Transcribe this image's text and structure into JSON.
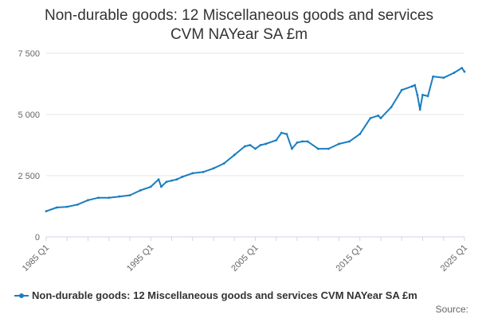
{
  "chart_data": {
    "type": "line",
    "title_line1": "Non-durable goods: 12 Miscellaneous goods and services",
    "title_line2": "CVM NAYear SA £m",
    "xlabel": "",
    "ylabel": "",
    "ylim": [
      0,
      7500
    ],
    "yticks": [
      0,
      2500,
      5000,
      7500
    ],
    "ytick_labels": [
      "0",
      "2 500",
      "5 000",
      "7 500"
    ],
    "xlim": [
      1985.0,
      2025.0
    ],
    "xticks": [
      1985,
      1995,
      2005,
      2015,
      2025
    ],
    "xtick_labels": [
      "1985 Q1",
      "1995 Q1",
      "2005 Q1",
      "2015 Q1",
      "2025 Q1"
    ],
    "grid": true,
    "legend_position": "bottom",
    "series": [
      {
        "name": "Non-durable goods: 12 Miscellaneous goods and services CVM NAYear SA £m",
        "color": "#1a7dc0",
        "x": [
          1985.0,
          1986.0,
          1987.0,
          1988.0,
          1989.0,
          1990.0,
          1991.0,
          1992.0,
          1993.0,
          1994.0,
          1995.0,
          1995.75,
          1996.0,
          1996.5,
          1997.0,
          1997.5,
          1998.0,
          1999.0,
          2000.0,
          2001.0,
          2002.0,
          2003.0,
          2004.0,
          2004.5,
          2005.0,
          2005.5,
          2006.0,
          2007.0,
          2007.5,
          2008.0,
          2008.5,
          2009.0,
          2009.5,
          2010.0,
          2011.0,
          2012.0,
          2013.0,
          2014.0,
          2015.0,
          2016.0,
          2016.75,
          2017.0,
          2018.0,
          2019.0,
          2020.0,
          2020.25,
          2020.5,
          2020.75,
          2021.0,
          2021.5,
          2022.0,
          2023.0,
          2024.0,
          2024.75,
          2025.0
        ],
        "values": [
          1050,
          1200,
          1230,
          1320,
          1500,
          1600,
          1600,
          1650,
          1700,
          1900,
          2050,
          2350,
          2050,
          2250,
          2300,
          2350,
          2450,
          2600,
          2650,
          2800,
          3000,
          3350,
          3700,
          3750,
          3600,
          3750,
          3800,
          3950,
          4250,
          4200,
          3600,
          3850,
          3900,
          3900,
          3600,
          3600,
          3800,
          3900,
          4200,
          4850,
          4950,
          4850,
          5300,
          6000,
          6150,
          6200,
          5800,
          5200,
          5800,
          5750,
          6550,
          6500,
          6700,
          6900,
          6750
        ]
      }
    ]
  },
  "source": {
    "label": "Source:"
  }
}
